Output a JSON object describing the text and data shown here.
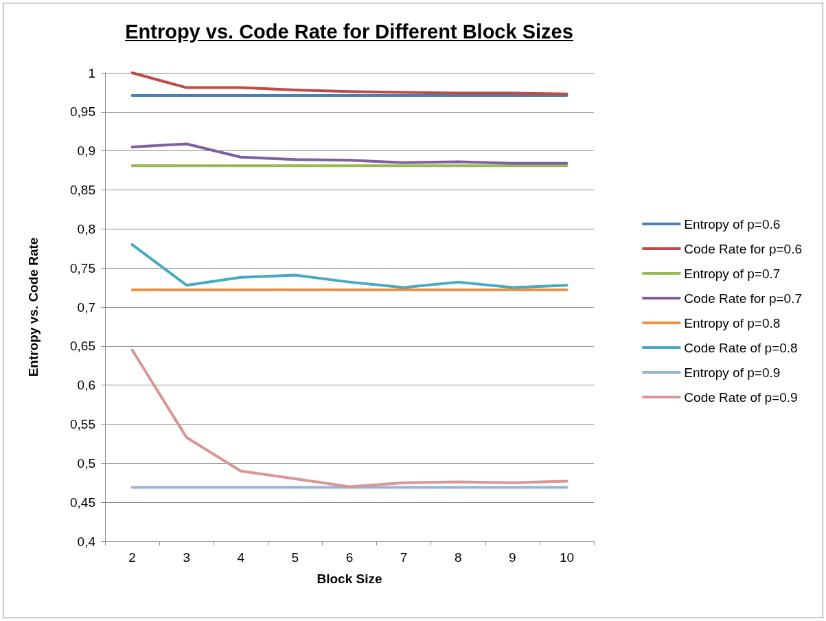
{
  "chart_data": {
    "type": "line",
    "title": "Entropy vs. Code Rate for Different Block Sizes",
    "xlabel": "Block Size",
    "ylabel": "Entropy vs. Code Rate",
    "categories": [
      "2",
      "3",
      "4",
      "5",
      "6",
      "7",
      "8",
      "9",
      "10"
    ],
    "series": [
      {
        "name": "Entropy of p=0.6",
        "color": "#4a7ebb",
        "values": [
          0.971,
          0.971,
          0.971,
          0.971,
          0.971,
          0.971,
          0.971,
          0.971,
          0.971
        ]
      },
      {
        "name": "Code Rate for p=0.6",
        "color": "#be4b48",
        "values": [
          1.0,
          0.981,
          0.981,
          0.978,
          0.976,
          0.975,
          0.974,
          0.974,
          0.973
        ]
      },
      {
        "name": "Entropy of p=0.7",
        "color": "#98b954",
        "values": [
          0.881,
          0.881,
          0.881,
          0.881,
          0.881,
          0.881,
          0.881,
          0.881,
          0.881
        ]
      },
      {
        "name": "Code Rate for p=0.7",
        "color": "#7d60a0",
        "values": [
          0.905,
          0.909,
          0.892,
          0.889,
          0.888,
          0.885,
          0.886,
          0.884,
          0.884
        ]
      },
      {
        "name": "Entropy of p=0.8",
        "color": "#f38f3e",
        "values": [
          0.722,
          0.722,
          0.722,
          0.722,
          0.722,
          0.722,
          0.722,
          0.722,
          0.722
        ]
      },
      {
        "name": "Code Rate of p=0.8",
        "color": "#46aac5",
        "values": [
          0.78,
          0.728,
          0.738,
          0.741,
          0.732,
          0.725,
          0.732,
          0.725,
          0.728
        ]
      },
      {
        "name": "Entropy of p=0.9",
        "color": "#95b3d7",
        "values": [
          0.469,
          0.469,
          0.469,
          0.469,
          0.469,
          0.469,
          0.469,
          0.469,
          0.469
        ]
      },
      {
        "name": "Code Rate of p=0.9",
        "color": "#d99694",
        "values": [
          0.645,
          0.533,
          0.49,
          0.48,
          0.47,
          0.475,
          0.476,
          0.475,
          0.477
        ]
      }
    ],
    "ylim": [
      0.4,
      1
    ],
    "yticks": [
      {
        "value": 0.4,
        "label": "0,4"
      },
      {
        "value": 0.45,
        "label": "0,45"
      },
      {
        "value": 0.5,
        "label": "0,5"
      },
      {
        "value": 0.55,
        "label": "0,55"
      },
      {
        "value": 0.6,
        "label": "0,6"
      },
      {
        "value": 0.65,
        "label": "0,65"
      },
      {
        "value": 0.7,
        "label": "0,7"
      },
      {
        "value": 0.75,
        "label": "0,75"
      },
      {
        "value": 0.8,
        "label": "0,8"
      },
      {
        "value": 0.85,
        "label": "0,85"
      },
      {
        "value": 0.9,
        "label": "0,9"
      },
      {
        "value": 0.95,
        "label": "0,95"
      },
      {
        "value": 1,
        "label": "1"
      }
    ],
    "grid": "y",
    "legend": "right",
    "marker": "none",
    "line_style": "solid"
  }
}
